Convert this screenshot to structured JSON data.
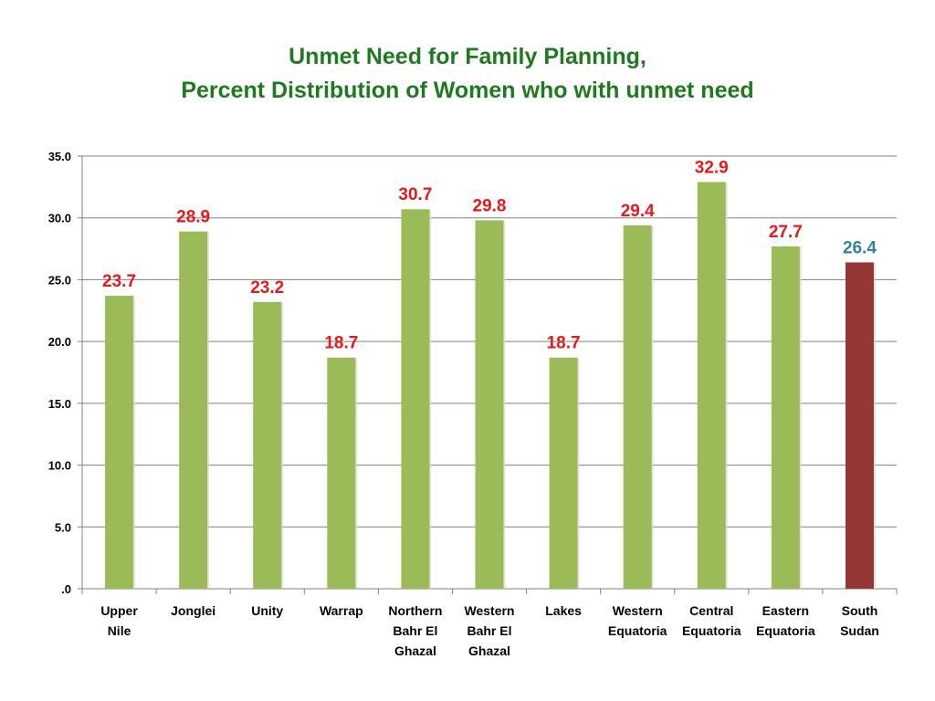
{
  "chart_data": {
    "type": "bar",
    "title": "Unmet Need for Family Planning,",
    "subtitle": "Percent Distribution of Women who with unmet need",
    "xlabel": "",
    "ylabel": "",
    "ylim": [
      0,
      35
    ],
    "yticks": [
      ".0",
      "5.0",
      "10.0",
      "15.0",
      "20.0",
      "25.0",
      "30.0",
      "35.0"
    ],
    "grid": true,
    "legend": "none",
    "categories": [
      [
        "Upper",
        "Nile"
      ],
      [
        "Jonglei"
      ],
      [
        "Unity"
      ],
      [
        "Warrap"
      ],
      [
        "Northern",
        "Bahr El",
        "Ghazal"
      ],
      [
        "Western",
        "Bahr El",
        "Ghazal"
      ],
      [
        "Lakes"
      ],
      [
        "Western",
        "Equatoria"
      ],
      [
        "Central",
        "Equatoria"
      ],
      [
        "Eastern",
        "Equatoria"
      ],
      [
        "South",
        "Sudan"
      ]
    ],
    "values": [
      23.7,
      28.9,
      23.2,
      18.7,
      30.7,
      29.8,
      18.7,
      29.4,
      32.9,
      27.7,
      26.4
    ],
    "value_labels": [
      "23.7",
      "28.9",
      "23.2",
      "18.7",
      "30.7",
      "29.8",
      "18.7",
      "29.4",
      "32.9",
      "27.7",
      "26.4"
    ],
    "colors": {
      "bar": "#9bbb59",
      "bar_highlight": "#953735",
      "value_label": "#e31a1c",
      "value_label_highlight": "#31849b",
      "title": "#1f7a1f",
      "grid": "#808080"
    },
    "highlight_index": 10
  }
}
